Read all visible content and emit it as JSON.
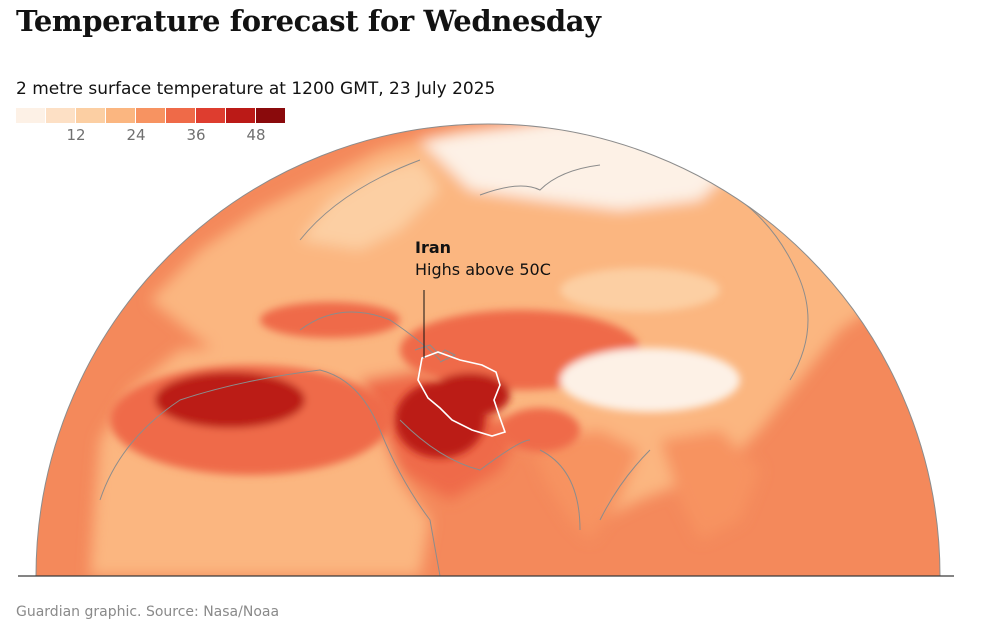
{
  "header": {
    "title": "Temperature forecast for Wednesday",
    "subtitle": "2 metre surface temperature at 1200 GMT, 23 July 2025"
  },
  "legend": {
    "colors": [
      "#fdf1e6",
      "#fde0c5",
      "#fccfa3",
      "#fbb680",
      "#f79361",
      "#ef6a48",
      "#de3d2f",
      "#bb1a17",
      "#8a0a0c",
      "#6a0407"
    ],
    "ticks": [
      "12",
      "24",
      "36",
      "48"
    ]
  },
  "map": {
    "background_sea_color": "#f4895b",
    "border_color": "#8c8c8c",
    "highlight_border_color": "#ffffff"
  },
  "annotation": {
    "label": "Iran",
    "text": "Highs above 50C"
  },
  "footer": {
    "source": "Guardian graphic. Source: Nasa/Noaa"
  }
}
